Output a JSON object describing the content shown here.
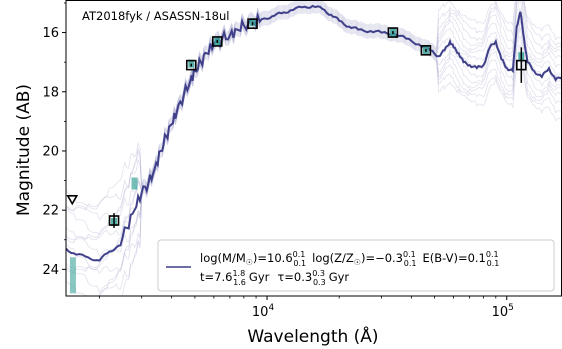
{
  "chart_data": {
    "type": "line",
    "title": "",
    "annotation": "AT2018fyk / ASASSN-18ul",
    "xlabel": "Wavelength (Å)",
    "ylabel": "Magnitude (AB)",
    "xscale": "log",
    "xlim": [
      1450,
      170000
    ],
    "ylim": [
      24.9,
      14.9
    ],
    "y_inverted": true,
    "y_ticks": [
      "16",
      "18",
      "20",
      "22",
      "24"
    ],
    "x_ticks": [
      {
        "base": "10",
        "exp": "4",
        "value": 10000
      },
      {
        "base": "10",
        "exp": "5",
        "value": 100000
      }
    ],
    "grid": false,
    "legend_position": "lower-right",
    "legend": {
      "line1": "log(M/M☉)=10.6⁺⁰·¹₋₀.₁  log(Z/Z☉)=−0.3⁺⁰·¹₋₀.₁  E(B-V)=0.1⁺⁰·¹₋₀.₁",
      "line1_parts": {
        "mass": "log(M/M",
        "mass_val": ")=10.6",
        "mass_sup": "0.1",
        "mass_sub": "0.1",
        "z": "log(Z/Z",
        "z_val": ")=−0.3",
        "z_sup": "0.1",
        "z_sub": "0.1",
        "ebv": "E(B-V)=0.1",
        "ebv_sup": "0.1",
        "ebv_sub": "0.1"
      },
      "line2_parts": {
        "t": "t=7.6",
        "t_sup": "1.8",
        "t_sub": "1.6",
        "t_unit": "Gyr",
        "tau": "τ=0.3",
        "tau_sup": "0.3",
        "tau_sub": "0.3",
        "tau_unit": "Gyr"
      }
    },
    "colors": {
      "model": "#3f3f8a",
      "model_faint": "#a9a9cf",
      "synthetic": "#3aa39a",
      "observed_edge": "#000000"
    },
    "best_fit_sed": {
      "x": [
        1450,
        1600,
        1800,
        2000,
        2200,
        2400,
        2600,
        2800,
        3000,
        3200,
        3400,
        3600,
        3800,
        4000,
        4200,
        4500,
        4800,
        5000,
        5300,
        5600,
        6000,
        6500,
        7000,
        7500,
        8000,
        8800,
        9500,
        10500,
        11500,
        12500,
        14000,
        15500,
        17000,
        18500,
        20000,
        22000,
        24000,
        27000,
        30000,
        34000,
        38000,
        43000,
        48000,
        52000,
        55000,
        58000,
        60000,
        63000,
        66000,
        70000,
        75000,
        80000,
        85000,
        90000,
        95000,
        100000,
        106000,
        110000,
        114000,
        118000,
        122000,
        130000,
        140000,
        150000,
        160000,
        170000
      ],
      "y": [
        23.3,
        23.5,
        23.6,
        23.7,
        23.4,
        23.2,
        22.6,
        22.0,
        21.4,
        21.1,
        20.6,
        20.0,
        19.5,
        19.1,
        18.7,
        18.1,
        17.6,
        17.3,
        17.0,
        16.7,
        16.4,
        16.2,
        16.1,
        15.9,
        15.75,
        15.65,
        15.55,
        15.45,
        15.35,
        15.25,
        15.15,
        15.1,
        15.2,
        15.4,
        15.6,
        15.8,
        15.9,
        15.95,
        16.0,
        16.05,
        16.2,
        16.4,
        16.6,
        16.8,
        16.6,
        16.3,
        16.5,
        16.7,
        17.0,
        17.1,
        17.2,
        17.1,
        16.5,
        16.3,
        16.9,
        17.2,
        17.3,
        15.8,
        15.3,
        16.2,
        17.0,
        17.3,
        17.5,
        17.2,
        17.6,
        17.5
      ]
    },
    "synthetic_photometry": {
      "x": [
        2300,
        2800,
        4830,
        6200,
        8700,
        33500,
        46000,
        115000,
        1550
      ],
      "y": [
        22.4,
        21.1,
        17.05,
        16.3,
        15.65,
        16.0,
        16.6,
        16.8,
        24.2
      ]
    },
    "observed_photometry": {
      "x": [
        2300,
        4830,
        6200,
        8700,
        33500,
        46000,
        115000
      ],
      "y": [
        22.35,
        17.1,
        16.3,
        15.7,
        16.0,
        16.6,
        17.1
      ],
      "yerr": [
        0.25,
        0.05,
        0.05,
        0.05,
        0.05,
        0.05,
        0.6
      ]
    },
    "upper_limits": {
      "x": [
        1540
      ],
      "y": [
        21.65
      ]
    }
  }
}
